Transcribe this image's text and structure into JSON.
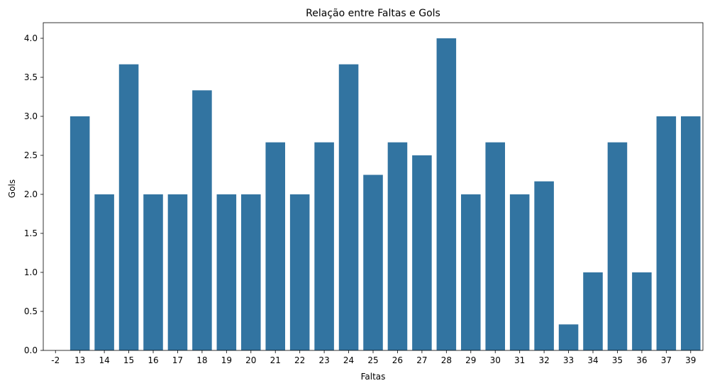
{
  "chart_data": {
    "type": "bar",
    "title": "Relação entre Faltas e Gols",
    "xlabel": "Faltas",
    "ylabel": "Gols",
    "categories": [
      "-2",
      "13",
      "14",
      "15",
      "16",
      "17",
      "18",
      "19",
      "20",
      "21",
      "22",
      "23",
      "24",
      "25",
      "26",
      "27",
      "28",
      "29",
      "30",
      "31",
      "32",
      "33",
      "34",
      "35",
      "36",
      "37",
      "39"
    ],
    "values": [
      0,
      3.0,
      2.0,
      3.6667,
      2.0,
      2.0,
      3.3333,
      2.0,
      2.0,
      2.6667,
      2.0,
      2.6667,
      3.6667,
      2.25,
      2.6667,
      2.5,
      4.0,
      2.0,
      2.6667,
      2.0,
      2.1667,
      0.3333,
      1.0,
      2.6667,
      1.0,
      3.0,
      3.0
    ],
    "ylim": [
      0,
      4.2
    ],
    "yticks": [
      "0.0",
      "0.5",
      "1.0",
      "1.5",
      "2.0",
      "2.5",
      "3.0",
      "3.5",
      "4.0"
    ],
    "bar_color": "#3274a1",
    "grid": false,
    "legend": "none"
  }
}
